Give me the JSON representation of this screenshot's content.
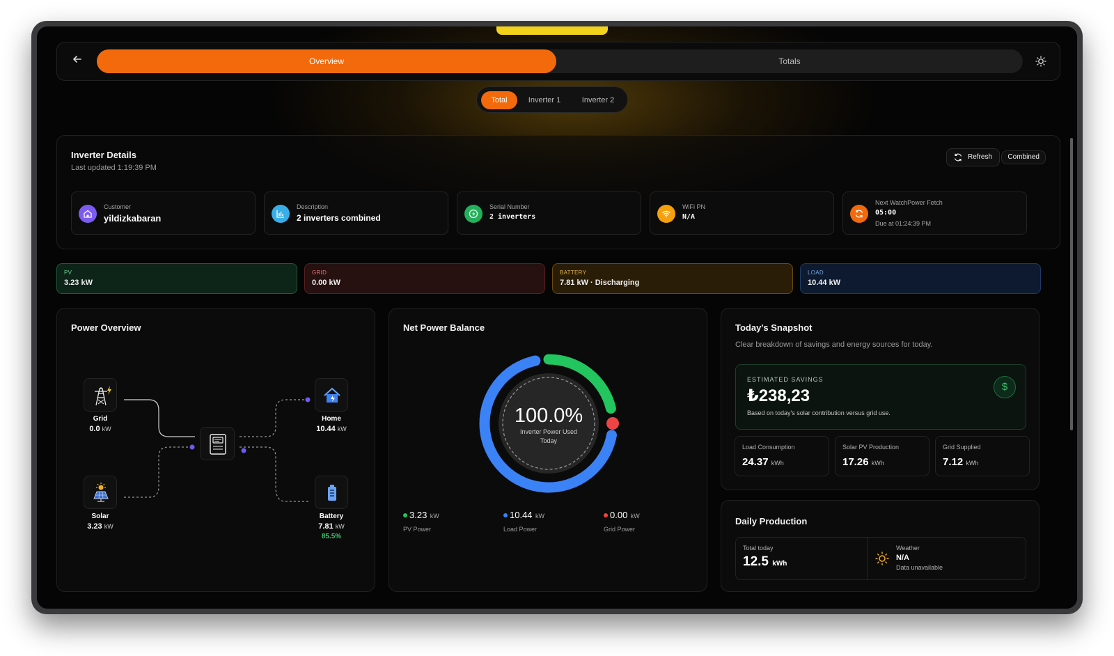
{
  "nav": {
    "tabs": [
      "Overview",
      "Totals"
    ],
    "active_tab": "Overview"
  },
  "filters": {
    "items": [
      "Total",
      "Inverter 1",
      "Inverter 2"
    ],
    "active": "Total"
  },
  "details": {
    "title": "Inverter Details",
    "updated": "Last updated 1:19:39 PM",
    "refresh_label": "Refresh",
    "mode_label": "Combined",
    "cards": [
      {
        "label": "Customer",
        "value": "yildizkabaran",
        "icon": "home-icon",
        "color": "#8b5cf6"
      },
      {
        "label": "Description",
        "value": "2 inverters combined",
        "icon": "chart-icon",
        "color": "#38bdf8"
      },
      {
        "label": "Serial Number",
        "value": "2 inverters",
        "icon": "bolt-icon",
        "color": "#22c55e"
      },
      {
        "label": "WiFi PN",
        "value": "N/A",
        "icon": "wifi-icon",
        "color": "#f59e0b"
      },
      {
        "label": "Next WatchPower Fetch",
        "value": "05:00",
        "sub": "Due at 01:24:39 PM",
        "icon": "refresh-icon",
        "color": "#f97316"
      }
    ]
  },
  "stats": [
    {
      "label": "PV",
      "value": "3.23 kW",
      "border": "#1f5a3a",
      "bg": "#0d2418",
      "label_color": "#6fcf97"
    },
    {
      "label": "GRID",
      "value": "0.00 kW",
      "border": "#5a2020",
      "bg": "#261010",
      "label_color": "#e57373"
    },
    {
      "label": "BATTERY",
      "value": "7.81 kW · Discharging",
      "border": "#6a4a10",
      "bg": "#2a1d08",
      "label_color": "#e0b04a"
    },
    {
      "label": "LOAD",
      "value": "10.44 kW",
      "border": "#1f3a66",
      "bg": "#0d1a30",
      "label_color": "#7aa5e0"
    }
  ],
  "power_overview": {
    "title": "Power Overview",
    "grid": {
      "label": "Grid",
      "value": "0.0",
      "unit": "kW"
    },
    "solar": {
      "label": "Solar",
      "value": "3.23",
      "unit": "kW"
    },
    "home": {
      "label": "Home",
      "value": "10.44",
      "unit": "kW"
    },
    "battery": {
      "label": "Battery",
      "value": "7.81",
      "unit": "kW",
      "soc": "85.5%"
    }
  },
  "balance": {
    "title": "Net Power Balance",
    "percent": "100.0%",
    "caption_1": "Inverter Power Used",
    "caption_2": "Today",
    "pv": {
      "value": "3.23",
      "unit": "kW",
      "label": "PV Power",
      "color": "#22c55e"
    },
    "load": {
      "value": "10.44",
      "unit": "kW",
      "label": "Load Power",
      "color": "#3b82f6"
    },
    "grid": {
      "value": "0.00",
      "unit": "kW",
      "label": "Grid Power",
      "color": "#ef4444"
    },
    "pv_fraction": 0.236,
    "load_fraction": 0.764
  },
  "snapshot": {
    "title": "Today's Snapshot",
    "subtitle": "Clear breakdown of savings and energy sources for today.",
    "savings_label": "ESTIMATED SAVINGS",
    "savings_value": "₺238,23",
    "savings_note": "Based on today's solar contribution versus grid use.",
    "metrics": [
      {
        "label": "Load Consumption",
        "value": "24.37",
        "unit": "kWh"
      },
      {
        "label": "Solar PV Production",
        "value": "17.26",
        "unit": "kWh"
      },
      {
        "label": "Grid Supplied",
        "value": "7.12",
        "unit": "kWh"
      }
    ]
  },
  "production": {
    "title": "Daily Production",
    "total_label": "Total today",
    "total_value": "12.5",
    "total_unit": "kWh",
    "weather_label": "Weather",
    "weather_value": "N/A",
    "weather_note": "Data unavailable"
  }
}
